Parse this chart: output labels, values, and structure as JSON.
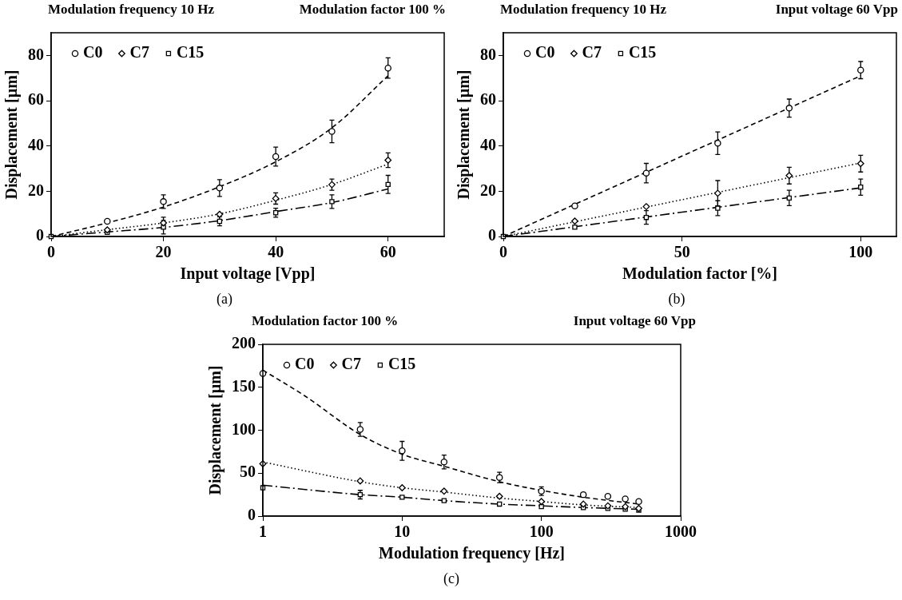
{
  "chart_data": [
    {
      "type": "scatter",
      "title": "Modulation frequency  10 Hz",
      "subtitle": "Modulation factor  100 %",
      "xlabel": "Input voltage [Vpp]",
      "ylabel": "Displacement [µm]",
      "annotations": [
        "(a)"
      ],
      "x": [
        0,
        10,
        20,
        30,
        40,
        50,
        60
      ],
      "xlim": [
        0,
        70
      ],
      "xticks": [
        0,
        20,
        40,
        60
      ],
      "ylim": [
        0,
        90
      ],
      "yticks": [
        0,
        20,
        40,
        60,
        80
      ],
      "grid": false,
      "legend": "top left",
      "series": [
        {
          "name": "C0",
          "color": "#000000",
          "marker": "circle",
          "values": [
            null,
            6.7,
            15.4,
            21.4,
            35.3,
            46.4,
            74.4
          ],
          "errors": [
            null,
            null,
            3,
            3.7,
            4.2,
            5,
            4.5
          ]
        },
        {
          "name": "C7",
          "color": "#000000",
          "marker": "diamond",
          "values": [
            null,
            2.9,
            6,
            9.8,
            16.8,
            22.9,
            33.7
          ],
          "errors": [
            null,
            null,
            2.5,
            null,
            2.5,
            2.5,
            3.2
          ]
        },
        {
          "name": "C15",
          "color": "#000000",
          "marker": "square",
          "values": [
            0,
            1.8,
            4.1,
            6.7,
            10.5,
            15.4,
            23
          ],
          "errors": [
            null,
            null,
            3,
            2,
            2,
            3,
            4
          ]
        },
        {
          "type": "line",
          "color": "#000000",
          "line_style": "dashed",
          "x": [
            0,
            10,
            20,
            30,
            40,
            50,
            60
          ],
          "values": [
            0,
            6,
            13,
            22,
            33,
            48,
            71
          ]
        },
        {
          "type": "line",
          "color": "#000000",
          "line_style": "dotted",
          "x": [
            0,
            10,
            20,
            30,
            40,
            50,
            60
          ],
          "values": [
            0,
            3,
            6,
            10,
            16,
            23,
            32
          ]
        },
        {
          "type": "line",
          "color": "#000000",
          "line_style": "dashdot",
          "x": [
            0,
            10,
            20,
            30,
            40,
            50,
            60
          ],
          "values": [
            0,
            2,
            4,
            7,
            11,
            15,
            21
          ]
        }
      ]
    },
    {
      "type": "scatter",
      "title": "Modulation frequency  10 Hz",
      "subtitle": "Input voltage 60 Vpp",
      "xlabel": "Modulation factor [%]",
      "ylabel": "Displacement [µm]",
      "annotations": [
        "(b)"
      ],
      "x": [
        0,
        20,
        40,
        60,
        80,
        100
      ],
      "xlim": [
        0,
        110
      ],
      "xticks": [
        0,
        50,
        100
      ],
      "ylim": [
        0,
        90
      ],
      "yticks": [
        0,
        20,
        40,
        60,
        80
      ],
      "grid": false,
      "legend": "top left",
      "series": [
        {
          "name": "C0",
          "color": "#000000",
          "marker": "circle",
          "values": [
            null,
            13.5,
            28,
            41.2,
            56.7,
            73.5
          ],
          "errors": [
            null,
            null,
            4.3,
            5,
            4,
            3.8
          ]
        },
        {
          "name": "C7",
          "color": "#000000",
          "marker": "diamond",
          "values": [
            null,
            6.8,
            13.2,
            19.1,
            26.9,
            32.2
          ],
          "errors": [
            null,
            null,
            null,
            5.6,
            3.7,
            3.7
          ]
        },
        {
          "name": "C15",
          "color": "#000000",
          "marker": "square",
          "values": [
            0,
            4.1,
            8.4,
            12.5,
            17,
            21.8
          ],
          "errors": [
            null,
            null,
            3,
            3.3,
            3.4,
            3.6
          ]
        },
        {
          "type": "line",
          "color": "#000000",
          "line_style": "dashed",
          "x": [
            0,
            100
          ],
          "values": [
            0,
            71
          ]
        },
        {
          "type": "line",
          "color": "#000000",
          "line_style": "dotted",
          "x": [
            0,
            100
          ],
          "values": [
            0,
            32.5
          ]
        },
        {
          "type": "line",
          "color": "#000000",
          "line_style": "dashdot",
          "x": [
            0,
            100
          ],
          "values": [
            0,
            21.5
          ]
        }
      ]
    },
    {
      "type": "scatter",
      "title": "Modulation factor  100 %",
      "subtitle": "Input voltage 60 Vpp",
      "xlabel": "Modulation frequency [Hz]",
      "ylabel": "Displacement [µm]",
      "annotations": [
        "(c)"
      ],
      "log": "x",
      "x": [
        1,
        5,
        10,
        20,
        50,
        100,
        200,
        300,
        400,
        500
      ],
      "xlim": [
        1,
        1000
      ],
      "xticks": [
        1,
        10,
        100,
        1000
      ],
      "ylim": [
        0,
        200
      ],
      "yticks": [
        0,
        50,
        100,
        150,
        200
      ],
      "grid": false,
      "legend": "top left",
      "series": [
        {
          "name": "C0",
          "color": "#000000",
          "marker": "circle",
          "values": [
            166,
            101,
            76,
            63,
            45,
            29,
            25,
            23,
            20,
            17
          ],
          "errors": [
            null,
            8,
            11,
            8,
            6,
            5,
            null,
            null,
            null,
            null
          ]
        },
        {
          "name": "C7",
          "color": "#000000",
          "marker": "diamond",
          "values": [
            61,
            41,
            33,
            29,
            23,
            17,
            14,
            12,
            11,
            9
          ],
          "errors": [
            null,
            null,
            null,
            null,
            null,
            null,
            null,
            null,
            null,
            null
          ]
        },
        {
          "name": "C15",
          "color": "#000000",
          "marker": "square",
          "values": [
            33,
            25,
            22,
            18,
            14,
            11,
            10,
            9,
            8,
            7
          ],
          "errors": [
            null,
            5,
            null,
            null,
            null,
            null,
            null,
            null,
            null,
            null
          ]
        },
        {
          "type": "line",
          "color": "#000000",
          "line_style": "dashed",
          "x": [
            1,
            2,
            5,
            10,
            20,
            50,
            100,
            200,
            500
          ],
          "values": [
            170,
            140,
            95,
            72,
            58,
            40,
            30,
            22,
            14
          ]
        },
        {
          "type": "line",
          "color": "#000000",
          "line_style": "dotted",
          "x": [
            1,
            5,
            10,
            20,
            50,
            100,
            200,
            500
          ],
          "values": [
            63,
            40,
            33,
            28,
            21,
            17,
            13,
            10
          ]
        },
        {
          "type": "line",
          "color": "#000000",
          "line_style": "dashdot",
          "x": [
            1,
            5,
            10,
            20,
            50,
            100,
            200,
            500
          ],
          "values": [
            36,
            25,
            22,
            18,
            14,
            12,
            10,
            8
          ]
        }
      ]
    }
  ]
}
